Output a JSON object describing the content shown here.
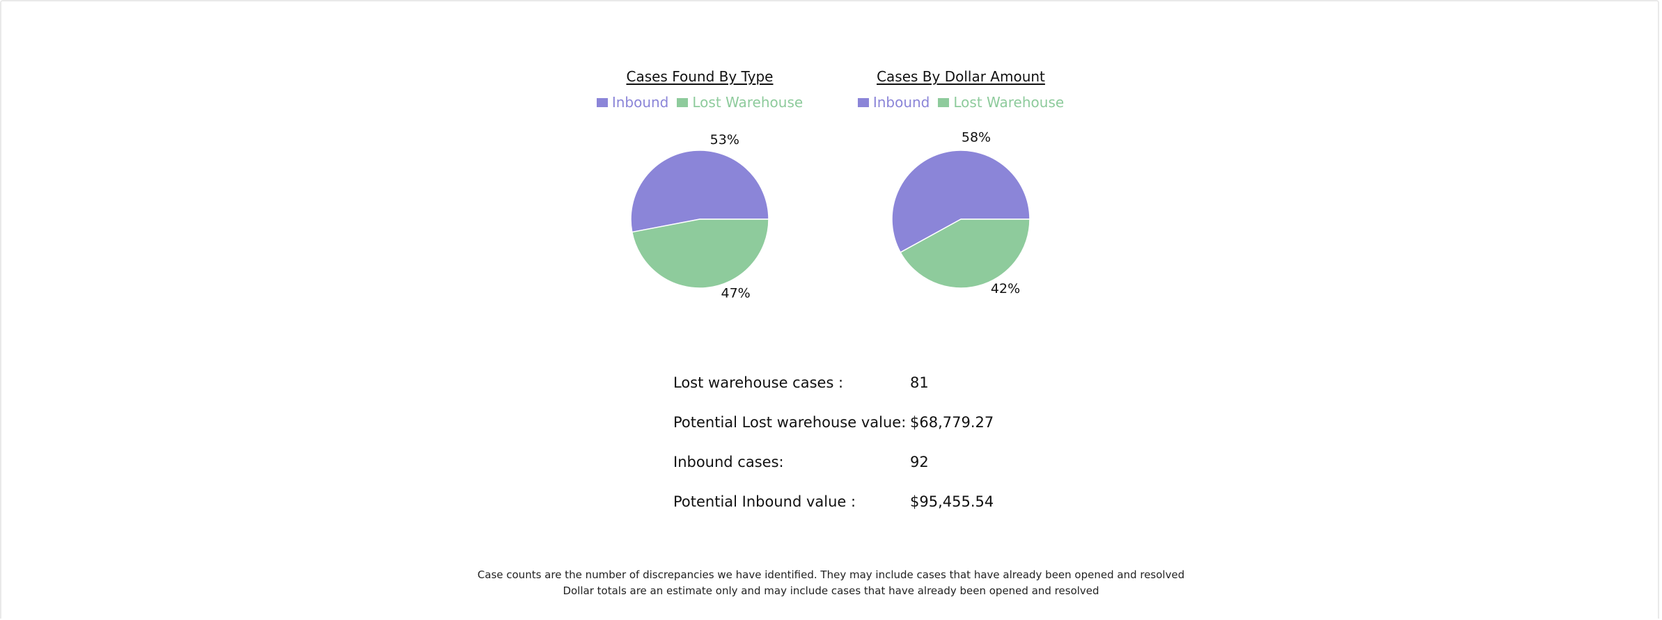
{
  "colors": {
    "inbound": "#8b85d8",
    "lost_warehouse": "#8ecb9c",
    "border": "#e9e9e9"
  },
  "chart_data": [
    {
      "type": "pie",
      "title": "Cases Found By Type",
      "legend_position": "top",
      "slices": [
        {
          "label": "Inbound",
          "value": 53,
          "display": "53%",
          "color": "#8b85d8"
        },
        {
          "label": "Lost Warehouse",
          "value": 47,
          "display": "47%",
          "color": "#8ecb9c"
        }
      ]
    },
    {
      "type": "pie",
      "title": "Cases By Dollar Amount",
      "legend_position": "top",
      "slices": [
        {
          "label": "Inbound",
          "value": 58,
          "display": "58%",
          "color": "#8b85d8"
        },
        {
          "label": "Lost Warehouse",
          "value": 42,
          "display": "42%",
          "color": "#8ecb9c"
        }
      ]
    }
  ],
  "stats": [
    {
      "label": "Lost warehouse cases :",
      "value": "81"
    },
    {
      "label": "Potential Lost warehouse value:",
      "value": "$68,779.27"
    },
    {
      "label": "Inbound cases:",
      "value": "92"
    },
    {
      "label": "Potential Inbound value :",
      "value": "$95,455.54"
    }
  ],
  "footnotes": [
    "Case counts are the number of discrepancies we have identified. They may include cases that have already been opened and resolved",
    "Dollar totals are an estimate only and may include cases that have already been opened and resolved"
  ]
}
